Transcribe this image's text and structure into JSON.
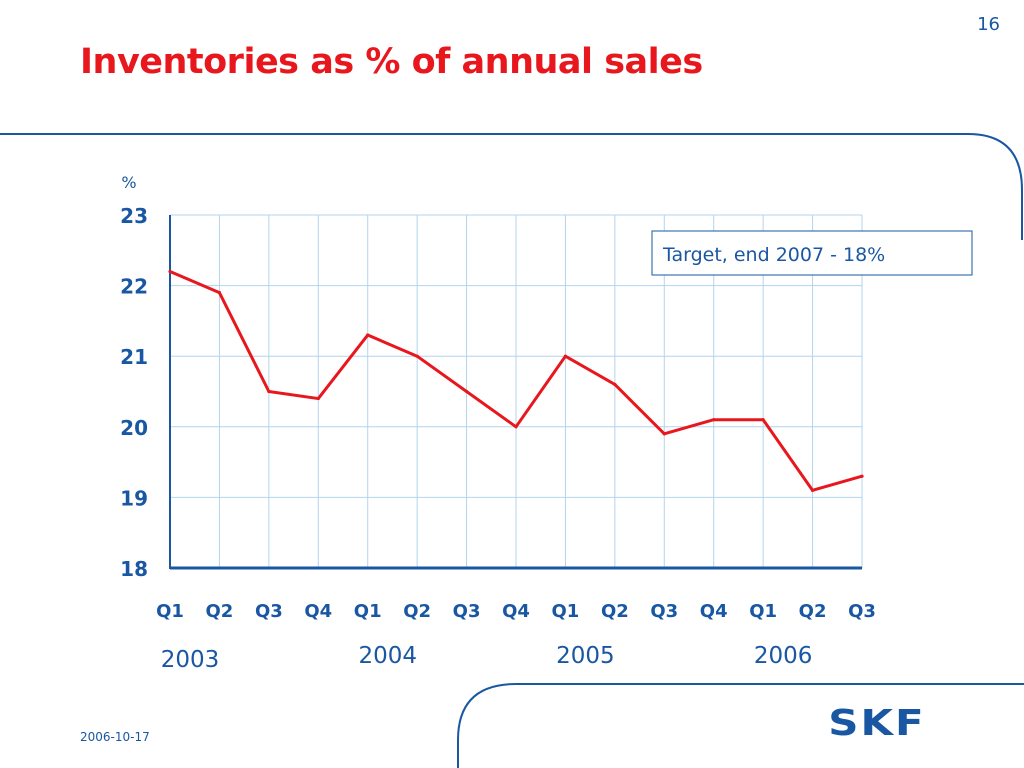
{
  "slide": {
    "page_number": "16",
    "title": "Inventories as % of annual sales",
    "date": "2006-10-17",
    "logo_text": "SKF"
  },
  "colors": {
    "title": "#e8171e",
    "text_blue": "#1a57a3",
    "line": "#e8171e",
    "grid": "#b3d4ee",
    "frame": "#1a57a3"
  },
  "chart_data": {
    "type": "line",
    "title": "",
    "ylabel": "%",
    "xlabel": "",
    "ylim": [
      18,
      23
    ],
    "yticks": [
      18,
      19,
      20,
      21,
      22,
      23
    ],
    "grid": true,
    "categories": [
      "Q1",
      "Q2",
      "Q3",
      "Q4",
      "Q1",
      "Q2",
      "Q3",
      "Q4",
      "Q1",
      "Q2",
      "Q3",
      "Q4",
      "Q1",
      "Q2",
      "Q3"
    ],
    "years": [
      "2003",
      "2004",
      "2005",
      "2006"
    ],
    "series": [
      {
        "values": [
          22.2,
          21.9,
          20.5,
          20.4,
          21.3,
          21.0,
          20.5,
          20.0,
          21.0,
          20.6,
          19.9,
          20.1,
          20.1,
          19.1,
          19.3
        ]
      }
    ],
    "annotation": "Target, end 2007 - 18%"
  }
}
